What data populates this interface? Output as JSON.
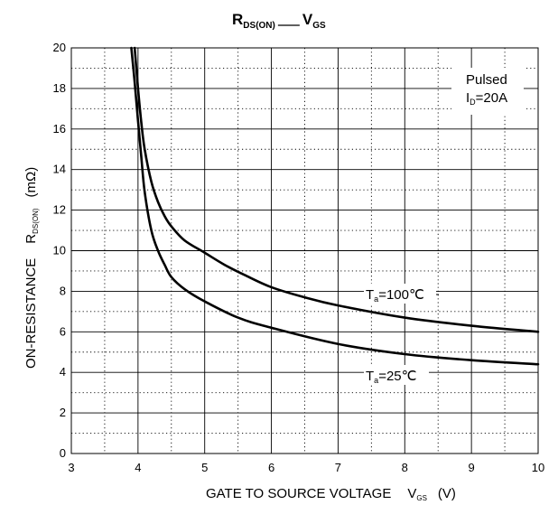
{
  "chart_data": {
    "type": "line",
    "title": {
      "left_main": "R",
      "left_sub": "DS(ON)",
      "right_main": "V",
      "right_sub": "GS"
    },
    "xlabel": {
      "main": "GATE TO SOURCE VOLTAGE",
      "var_main": "V",
      "var_sub": "GS",
      "unit": "(V)"
    },
    "ylabel": {
      "main": "ON-RESISTANCE",
      "var_main": "R",
      "var_sub": "DS(ON)",
      "unit": "(mΩ)"
    },
    "xlim": [
      3,
      10
    ],
    "ylim": [
      0,
      20
    ],
    "x_ticks": [
      "3",
      "4",
      "5",
      "6",
      "7",
      "8",
      "9",
      "10"
    ],
    "y_ticks": [
      "0",
      "2",
      "4",
      "6",
      "8",
      "10",
      "12",
      "14",
      "16",
      "18",
      "20"
    ],
    "grid": "major solid, minor dotted",
    "legend_box": {
      "line1": "Pulsed",
      "line2_main": "I",
      "line2_sub": "D",
      "line2_rest": "=20A",
      "placement": "top-right"
    },
    "series": [
      {
        "label_main": "T",
        "label_sub": "a",
        "label_rest": "=100℃",
        "x": [
          3.95,
          4.0,
          4.05,
          4.1,
          4.2,
          4.3,
          4.4,
          4.5,
          4.7,
          5.0,
          5.3,
          5.6,
          6.0,
          6.5,
          7.0,
          8.0,
          9.0,
          10.0
        ],
        "y": [
          20.0,
          18.0,
          16.3,
          15.0,
          13.4,
          12.4,
          11.7,
          11.2,
          10.5,
          9.9,
          9.3,
          8.8,
          8.2,
          7.7,
          7.3,
          6.7,
          6.3,
          6.0
        ]
      },
      {
        "label_main": "T",
        "label_sub": "a",
        "label_rest": "=25℃",
        "x": [
          3.9,
          3.95,
          4.0,
          4.05,
          4.1,
          4.2,
          4.3,
          4.4,
          4.5,
          4.7,
          5.0,
          5.5,
          6.0,
          7.0,
          8.0,
          9.0,
          10.0
        ],
        "y": [
          20.0,
          18.3,
          16.4,
          14.6,
          12.9,
          11.0,
          10.0,
          9.3,
          8.7,
          8.1,
          7.5,
          6.7,
          6.2,
          5.4,
          4.9,
          4.6,
          4.4
        ]
      }
    ]
  }
}
